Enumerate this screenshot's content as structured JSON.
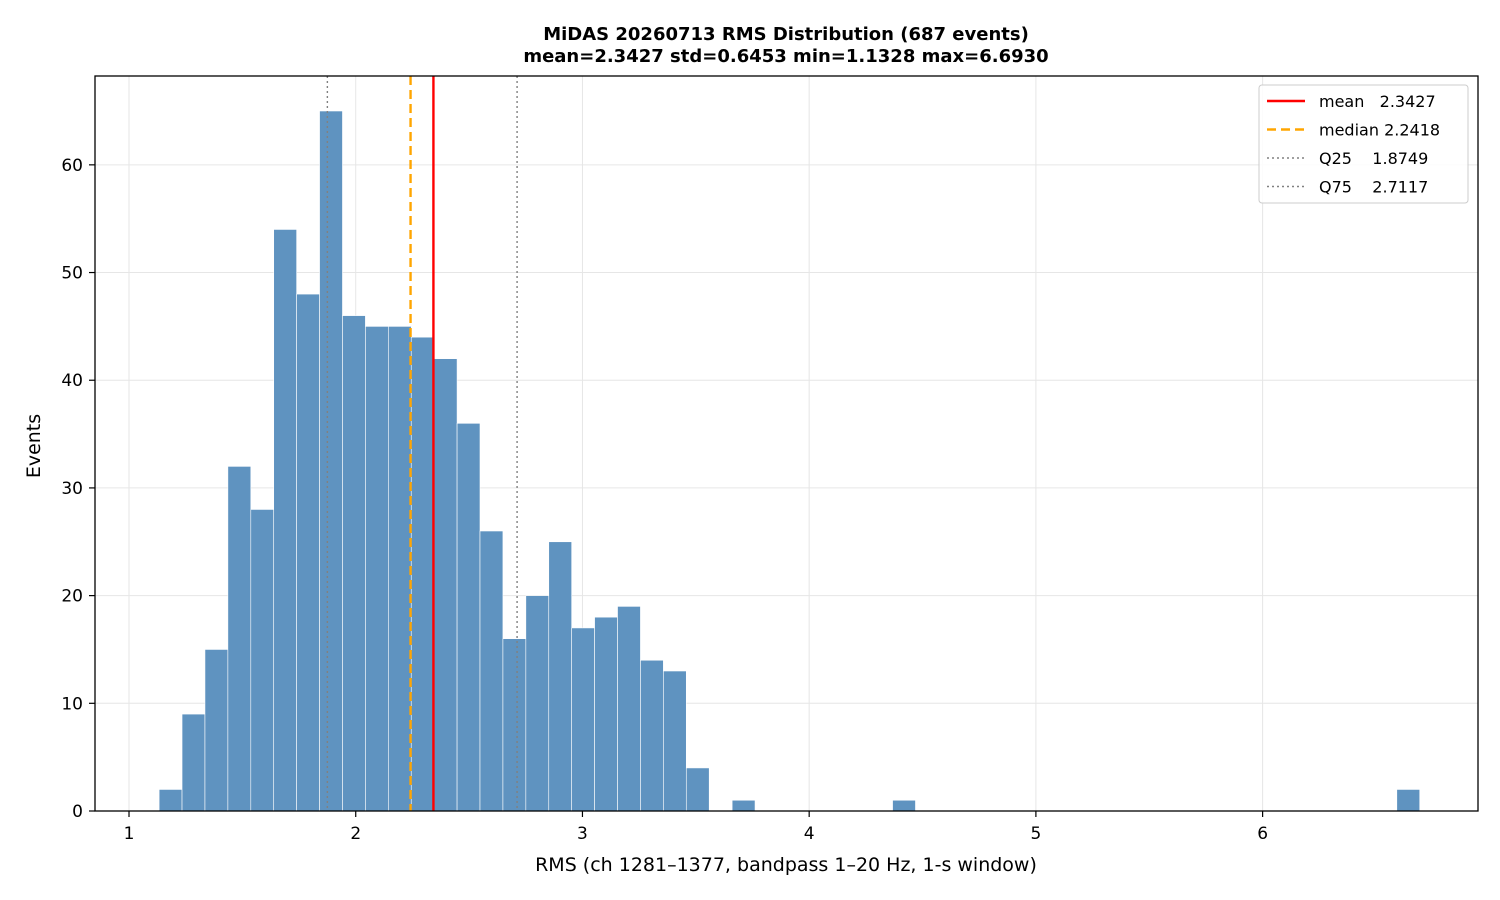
{
  "chart_data": {
    "type": "bar",
    "title": "MiDAS 20260713  RMS Distribution  (687 events)",
    "subtitle": "mean=2.3427  std=0.6453  min=1.1328  max=6.6930",
    "xlabel": "RMS  (ch 1281–1377, bandpass 1–20 Hz, 1-s window)",
    "ylabel": "Events",
    "xlim": [
      0.85,
      6.95
    ],
    "ylim": [
      0,
      68.25
    ],
    "xticks": [
      1,
      2,
      3,
      4,
      5,
      6
    ],
    "yticks": [
      0,
      10,
      20,
      30,
      40,
      50,
      60
    ],
    "grid": true,
    "legend_position": "top-right",
    "bar_color": "#5f93c0",
    "bar_edge_color": "#ffffff",
    "bins": {
      "start": 1.1328,
      "end": 6.693,
      "counts": [
        2,
        9,
        15,
        32,
        28,
        54,
        48,
        65,
        46,
        45,
        45,
        44,
        42,
        36,
        26,
        16,
        20,
        25,
        17,
        18,
        19,
        14,
        13,
        4,
        0,
        1,
        0,
        0,
        0,
        0,
        0,
        0,
        1,
        0,
        0,
        0,
        0,
        0,
        0,
        0,
        0,
        0,
        0,
        0,
        0,
        0,
        0,
        0,
        0,
        0,
        0,
        0,
        0,
        0,
        2
      ]
    },
    "reference_lines": [
      {
        "name": "mean",
        "value": 2.3427,
        "label": "mean   2.3427",
        "color": "#ff0000",
        "style": "solid"
      },
      {
        "name": "median",
        "value": 2.2418,
        "label": "median 2.2418",
        "color": "#ffa500",
        "style": "dashed"
      },
      {
        "name": "Q25",
        "value": 1.8749,
        "label": "Q25    1.8749",
        "color": "#808080",
        "style": "dotted"
      },
      {
        "name": "Q75",
        "value": 2.7117,
        "label": "Q75    2.7117",
        "color": "#808080",
        "style": "dotted"
      }
    ]
  }
}
